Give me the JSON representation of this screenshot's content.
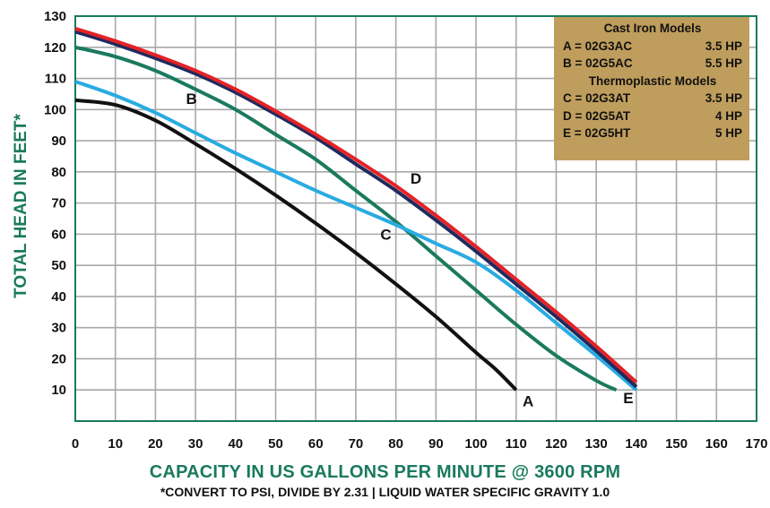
{
  "chart_data": {
    "type": "line",
    "title": "",
    "xlabel": "CAPACITY IN US GALLONS PER MINUTE @ 3600 RPM",
    "ylabel": "TOTAL HEAD IN FEET*",
    "note": "*CONVERT TO PSI, DIVIDE BY 2.31  |  LIQUID WATER SPECIFIC GRAVITY 1.0",
    "xlim": [
      0,
      170
    ],
    "ylim": [
      0,
      130
    ],
    "xticks": [
      "0",
      "10",
      "20",
      "30",
      "40",
      "50",
      "60",
      "70",
      "80",
      "90",
      "100",
      "110",
      "120",
      "130",
      "140",
      "150",
      "160",
      "170"
    ],
    "yticks": [
      "10",
      "20",
      "30",
      "40",
      "50",
      "60",
      "70",
      "80",
      "90",
      "100",
      "110",
      "120",
      "130"
    ],
    "grid": true,
    "legend_position": "top-right",
    "series": [
      {
        "name": "A",
        "color": "#111111",
        "x": [
          0,
          10,
          20,
          30,
          40,
          50,
          60,
          70,
          80,
          90,
          100,
          105,
          110
        ],
        "y": [
          103,
          101.5,
          96.5,
          89,
          81,
          72.5,
          63.5,
          54,
          44,
          33.5,
          22,
          16.5,
          10
        ]
      },
      {
        "name": "B",
        "color": "#1a7a5e",
        "x": [
          0,
          10,
          20,
          30,
          40,
          50,
          60,
          70,
          80,
          90,
          100,
          110,
          120,
          130,
          135
        ],
        "y": [
          120,
          117,
          112.5,
          106.5,
          100,
          92,
          84,
          74,
          64,
          53,
          42,
          31,
          21,
          13,
          10
        ]
      },
      {
        "name": "C",
        "color": "#29abe2",
        "x": [
          0,
          10,
          20,
          30,
          40,
          50,
          60,
          70,
          80,
          90,
          100,
          110,
          120,
          130,
          140
        ],
        "y": [
          109,
          104.5,
          99,
          92.5,
          86,
          80,
          74,
          68.5,
          63,
          57,
          51,
          42,
          31.5,
          21,
          10
        ]
      },
      {
        "name": "D",
        "color": "#e42226",
        "x": [
          0,
          10,
          20,
          30,
          40,
          50,
          60,
          70,
          80,
          90,
          100,
          110,
          120,
          130,
          140
        ],
        "y": [
          126,
          122,
          117.5,
          112.5,
          106.5,
          99.5,
          92,
          84,
          75.5,
          66,
          56,
          45.5,
          35,
          24,
          12.5
        ]
      },
      {
        "name": "E",
        "color": "#1f2a5e",
        "x": [
          0,
          10,
          20,
          30,
          40,
          50,
          60,
          70,
          80,
          90,
          100,
          110,
          120,
          130,
          140
        ],
        "y": [
          125,
          121,
          116.5,
          111.5,
          105.5,
          98.5,
          91,
          82.5,
          74,
          64.5,
          54.5,
          44,
          33.5,
          22.5,
          11
        ]
      }
    ],
    "curve_labels": [
      {
        "text": "A",
        "x": 113,
        "y": 6.5
      },
      {
        "text": "B",
        "x": 29,
        "y": 103.5
      },
      {
        "text": "C",
        "x": 77.5,
        "y": 60
      },
      {
        "text": "D",
        "x": 85,
        "y": 78
      },
      {
        "text": "E",
        "x": 138,
        "y": 7.5
      }
    ],
    "legend": {
      "header_cast_iron": "Cast Iron Models",
      "header_thermoplastic": "Thermoplastic Models",
      "rows": [
        {
          "model": "A = 02G3AC",
          "hp": "3.5 HP"
        },
        {
          "model": "B = 02G5AC",
          "hp": "5.5 HP"
        },
        {
          "model": "C = 02G3AT",
          "hp": "3.5 HP"
        },
        {
          "model": "D = 02G5AT",
          "hp": "4 HP"
        },
        {
          "model": "E = 02G5HT",
          "hp": "5 HP"
        }
      ]
    }
  }
}
